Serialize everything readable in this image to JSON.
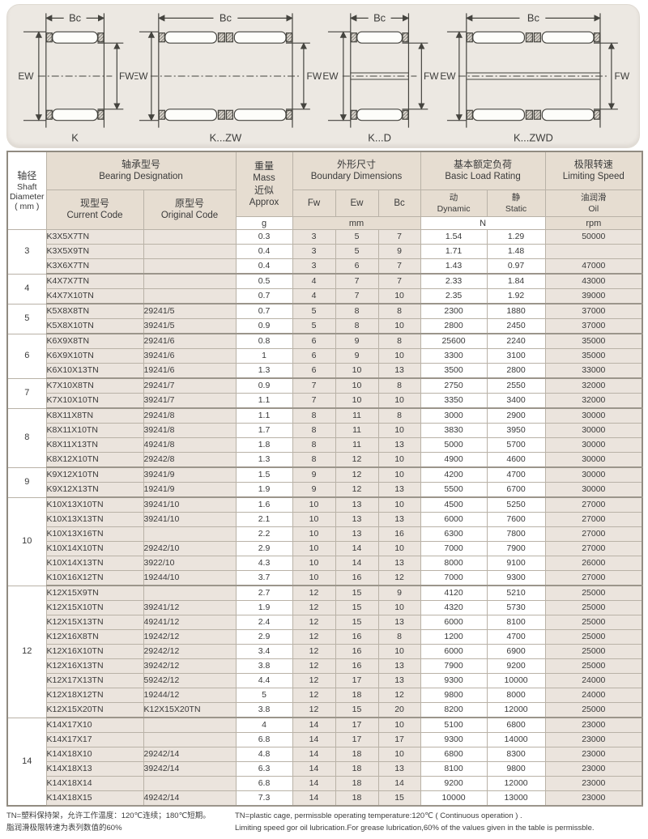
{
  "diagrams": {
    "items": [
      {
        "label": "K",
        "top": "Bc",
        "left": "EW",
        "right": "FW"
      },
      {
        "label": "K...ZW",
        "top": "Bc",
        "left": "EW",
        "right": "FW"
      },
      {
        "label": "K...D",
        "top": "Bc",
        "left": "EW",
        "right": "FW"
      },
      {
        "label": "K...ZWD",
        "top": "Bc",
        "left": "EW",
        "right": "FW"
      }
    ]
  },
  "table": {
    "header": {
      "shaft_cn": "轴径",
      "shaft_en1": "Shaft",
      "shaft_en2": "Diameter",
      "shaft_en3": "( mm )",
      "designation_cn": "轴承型号",
      "designation_en": "Bearing Designation",
      "current_cn": "现型号",
      "current_en": "Current Code",
      "original_cn": "原型号",
      "original_en": "Original Code",
      "mass_cn": "重量",
      "mass_en": "Mass",
      "approx_cn": "近似",
      "approx_en": "Approx",
      "mass_unit": "g",
      "boundary_cn": "外形尺寸",
      "boundary_en": "Boundary Dimensions",
      "fw": "Fw",
      "ew": "Ew",
      "bc": "Bc",
      "boundary_unit": "mm",
      "load_cn": "基本额定负荷",
      "load_en": "Basic Load Rating",
      "dynamic_cn": "动",
      "dynamic_en": "Dynamic",
      "static_cn": "静",
      "static_en": "Static",
      "load_unit": "N",
      "speed_cn": "极限转速",
      "speed_en": "Limiting Speed",
      "oil_cn": "油润滑",
      "oil_en": "Oil",
      "speed_unit": "rpm"
    },
    "groups": [
      {
        "shaft": "3",
        "rows": [
          [
            "K3X5X7TN",
            "",
            "0.3",
            "3",
            "5",
            "7",
            "1.54",
            "1.29",
            "50000"
          ],
          [
            "K3X5X9TN",
            "",
            "0.4",
            "3",
            "5",
            "9",
            "1.71",
            "1.48",
            ""
          ],
          [
            "K3X6X7TN",
            "",
            "0.4",
            "3",
            "6",
            "7",
            "1.43",
            "0.97",
            "47000"
          ]
        ]
      },
      {
        "shaft": "4",
        "rows": [
          [
            "K4X7X7TN",
            "",
            "0.5",
            "4",
            "7",
            "7",
            "2.33",
            "1.84",
            "43000"
          ],
          [
            "K4X7X10TN",
            "",
            "0.7",
            "4",
            "7",
            "10",
            "2.35",
            "1.92",
            "39000"
          ]
        ]
      },
      {
        "shaft": "5",
        "rows": [
          [
            "K5X8X8TN",
            "29241/5",
            "0.7",
            "5",
            "8",
            "8",
            "2300",
            "1880",
            "37000"
          ],
          [
            "K5X8X10TN",
            "39241/5",
            "0.9",
            "5",
            "8",
            "10",
            "2800",
            "2450",
            "37000"
          ]
        ]
      },
      {
        "shaft": "6",
        "rows": [
          [
            "K6X9X8TN",
            "29241/6",
            "0.8",
            "6",
            "9",
            "8",
            "25600",
            "2240",
            "35000"
          ],
          [
            "K6X9X10TN",
            "39241/6",
            "1",
            "6",
            "9",
            "10",
            "3300",
            "3100",
            "35000"
          ],
          [
            "K6X10X13TN",
            "19241/6",
            "1.3",
            "6",
            "10",
            "13",
            "3500",
            "2800",
            "33000"
          ]
        ]
      },
      {
        "shaft": "7",
        "rows": [
          [
            "K7X10X8TN",
            "29241/7",
            "0.9",
            "7",
            "10",
            "8",
            "2750",
            "2550",
            "32000"
          ],
          [
            "K7X10X10TN",
            "39241/7",
            "1.1",
            "7",
            "10",
            "10",
            "3350",
            "3400",
            "32000"
          ]
        ]
      },
      {
        "shaft": "8",
        "rows": [
          [
            "K8X11X8TN",
            "29241/8",
            "1.1",
            "8",
            "11",
            "8",
            "3000",
            "2900",
            "30000"
          ],
          [
            "K8X11X10TN",
            "39241/8",
            "1.7",
            "8",
            "11",
            "10",
            "3830",
            "3950",
            "30000"
          ],
          [
            "K8X11X13TN",
            "49241/8",
            "1.8",
            "8",
            "11",
            "13",
            "5000",
            "5700",
            "30000"
          ],
          [
            "K8X12X10TN",
            "29242/8",
            "1.3",
            "8",
            "12",
            "10",
            "4900",
            "4600",
            "30000"
          ]
        ]
      },
      {
        "shaft": "9",
        "rows": [
          [
            "K9X12X10TN",
            "39241/9",
            "1.5",
            "9",
            "12",
            "10",
            "4200",
            "4700",
            "30000"
          ],
          [
            "K9X12X13TN",
            "19241/9",
            "1.9",
            "9",
            "12",
            "13",
            "5500",
            "6700",
            "30000"
          ]
        ]
      },
      {
        "shaft": "10",
        "rows": [
          [
            "K10X13X10TN",
            "39241/10",
            "1.6",
            "10",
            "13",
            "10",
            "4500",
            "5250",
            "27000"
          ],
          [
            "K10X13X13TN",
            "39241/10",
            "2.1",
            "10",
            "13",
            "13",
            "6000",
            "7600",
            "27000"
          ],
          [
            "K10X13X16TN",
            "",
            "2.2",
            "10",
            "13",
            "16",
            "6300",
            "7800",
            "27000"
          ],
          [
            "K10X14X10TN",
            "29242/10",
            "2.9",
            "10",
            "14",
            "10",
            "7000",
            "7900",
            "27000"
          ],
          [
            "K10X14X13TN",
            "3922/10",
            "4.3",
            "10",
            "14",
            "13",
            "8000",
            "9100",
            "26000"
          ],
          [
            "K10X16X12TN",
            "19244/10",
            "3.7",
            "10",
            "16",
            "12",
            "7000",
            "9300",
            "27000"
          ]
        ]
      },
      {
        "shaft": "12",
        "rows": [
          [
            "K12X15X9TN",
            "",
            "2.7",
            "12",
            "15",
            "9",
            "4120",
            "5210",
            "25000"
          ],
          [
            "K12X15X10TN",
            "39241/12",
            "1.9",
            "12",
            "15",
            "10",
            "4320",
            "5730",
            "25000"
          ],
          [
            "K12X15X13TN",
            "49241/12",
            "2.4",
            "12",
            "15",
            "13",
            "6000",
            "8100",
            "25000"
          ],
          [
            "K12X16X8TN",
            "19242/12",
            "2.9",
            "12",
            "16",
            "8",
            "1200",
            "4700",
            "25000"
          ],
          [
            "K12X16X10TN",
            "29242/12",
            "3.4",
            "12",
            "16",
            "10",
            "6000",
            "6900",
            "25000"
          ],
          [
            "K12X16X13TN",
            "39242/12",
            "3.8",
            "12",
            "16",
            "13",
            "7900",
            "9200",
            "25000"
          ],
          [
            "K12X17X13TN",
            "59242/12",
            "4.4",
            "12",
            "17",
            "13",
            "9300",
            "10000",
            "24000"
          ],
          [
            "K12X18X12TN",
            "19244/12",
            "5",
            "12",
            "18",
            "12",
            "9800",
            "8000",
            "24000"
          ],
          [
            "K12X15X20TN",
            "K12X15X20TN",
            "3.8",
            "12",
            "15",
            "20",
            "8200",
            "12000",
            "25000"
          ]
        ]
      },
      {
        "shaft": "14",
        "rows": [
          [
            "K14X17X10",
            "",
            "4",
            "14",
            "17",
            "10",
            "5100",
            "6800",
            "23000"
          ],
          [
            "K14X17X17",
            "",
            "6.8",
            "14",
            "17",
            "17",
            "9300",
            "14000",
            "23000"
          ],
          [
            "K14X18X10",
            "29242/14",
            "4.8",
            "14",
            "18",
            "10",
            "6800",
            "8300",
            "23000"
          ],
          [
            "K14X18X13",
            "39242/14",
            "6.3",
            "14",
            "18",
            "13",
            "8100",
            "9800",
            "23000"
          ],
          [
            "K14X18X14",
            "",
            "6.8",
            "14",
            "18",
            "14",
            "9200",
            "12000",
            "23000"
          ],
          [
            "K14X18X15",
            "49242/14",
            "7.3",
            "14",
            "18",
            "15",
            "10000",
            "13000",
            "23000"
          ]
        ]
      }
    ]
  },
  "footnotes": {
    "cn1": "TN=塑料保持架，允许工作温度：120℃连续；180℃短期。",
    "cn2": "脂润滑极限转速为表列数值的60%",
    "en1": "TN=plastic cage, permissble operating temperature:120℃ ( Continuous operation ) .",
    "en2": "Limiting speed gor oil lubrication.For grease lubrication,60% of the values given in the table is permissble."
  },
  "colors": {
    "panel_bg": "#ece8e2",
    "header_tan": "#e6ddd1",
    "cell_beige": "#ebe4dd",
    "border_gray": "#b9b2a7"
  }
}
